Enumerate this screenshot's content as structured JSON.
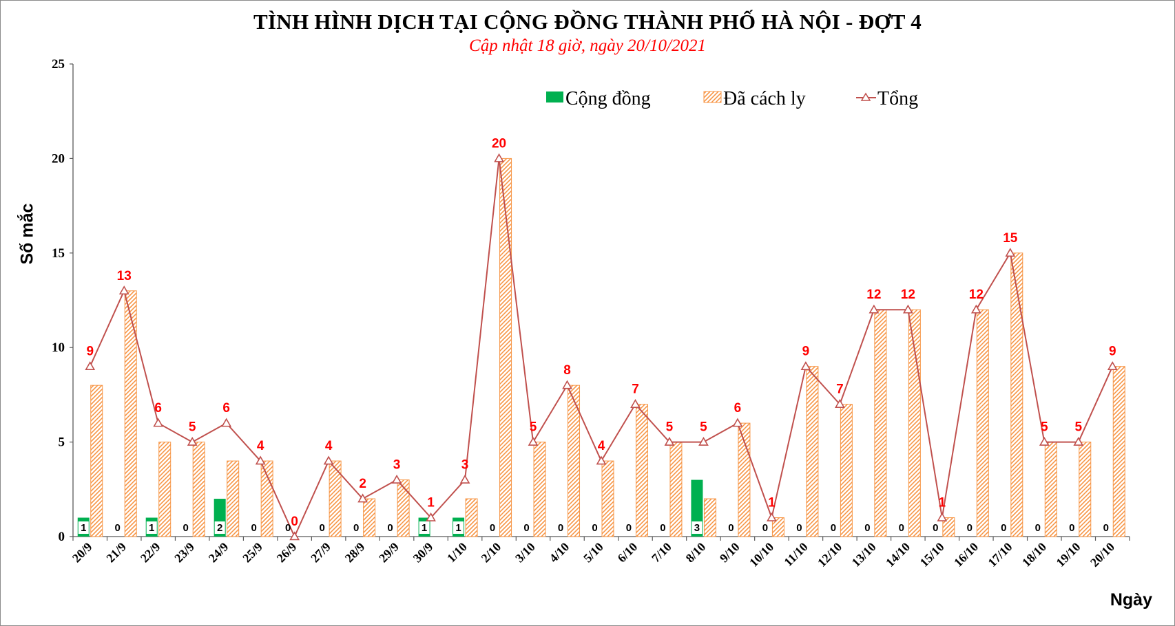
{
  "chart_data": {
    "type": "bar",
    "title": "TÌNH HÌNH DỊCH TẠI CỘNG ĐỒNG THÀNH PHỐ HÀ NỘI - ĐỢT 4",
    "subtitle": "Cập nhật 18 giờ, ngày 20/10/2021",
    "xlabel": "Ngày",
    "ylabel": "Số mắc",
    "ylim": [
      0,
      25
    ],
    "yticks": [
      0,
      5,
      10,
      15,
      20,
      25
    ],
    "grid": false,
    "legend_position": "top",
    "categories": [
      "20/9",
      "21/9",
      "22/9",
      "23/9",
      "24/9",
      "25/9",
      "26/9",
      "27/9",
      "28/9",
      "29/9",
      "30/9",
      "1/10",
      "2/10",
      "3/10",
      "4/10",
      "5/10",
      "6/10",
      "7/10",
      "8/10",
      "9/10",
      "10/10",
      "11/10",
      "12/10",
      "13/10",
      "14/10",
      "15/10",
      "16/10",
      "17/10",
      "18/10",
      "19/10",
      "20/10"
    ],
    "series": [
      {
        "name": "Cộng đồng",
        "kind": "bar",
        "color": "#00b050",
        "values": [
          1,
          0,
          1,
          0,
          2,
          0,
          0,
          0,
          0,
          0,
          1,
          1,
          0,
          0,
          0,
          0,
          0,
          0,
          3,
          0,
          0,
          0,
          0,
          0,
          0,
          0,
          0,
          0,
          0,
          0,
          0
        ]
      },
      {
        "name": "Đã cách ly",
        "kind": "bar-hatched",
        "color": "#f79646",
        "values": [
          8,
          13,
          5,
          5,
          4,
          4,
          0,
          4,
          2,
          3,
          0,
          2,
          20,
          5,
          8,
          4,
          7,
          5,
          2,
          6,
          1,
          9,
          7,
          12,
          12,
          1,
          12,
          15,
          5,
          5,
          9
        ]
      },
      {
        "name": "Tổng",
        "kind": "line",
        "color": "#c0504d",
        "label_color": "#ff0000",
        "values": [
          9,
          13,
          6,
          5,
          6,
          4,
          0,
          4,
          2,
          3,
          1,
          3,
          20,
          5,
          8,
          4,
          7,
          5,
          5,
          6,
          1,
          9,
          7,
          12,
          12,
          1,
          12,
          15,
          5,
          5,
          9
        ]
      }
    ]
  }
}
